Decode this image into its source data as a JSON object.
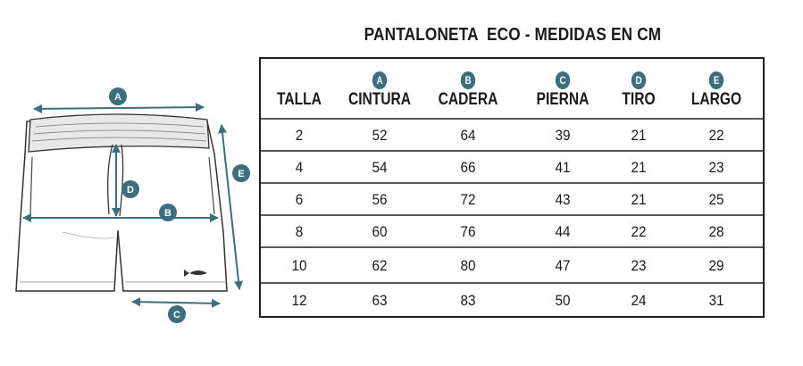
{
  "title": "PANTALONETA  ECO - MEDIDAS EN CM",
  "columns": [
    {
      "badge": "",
      "label": "TALLA"
    },
    {
      "badge": "A",
      "label": "CINTURA"
    },
    {
      "badge": "B",
      "label": "CADERA"
    },
    {
      "badge": "C",
      "label": "PIERNA"
    },
    {
      "badge": "D",
      "label": "TIRO"
    },
    {
      "badge": "E",
      "label": "LARGO"
    }
  ],
  "rows": [
    [
      "2",
      "52",
      "64",
      "39",
      "21",
      "22"
    ],
    [
      "4",
      "54",
      "66",
      "41",
      "21",
      "23"
    ],
    [
      "6",
      "56",
      "72",
      "43",
      "21",
      "25"
    ],
    [
      "8",
      "60",
      "76",
      "44",
      "22",
      "28"
    ],
    [
      "10",
      "62",
      "80",
      "47",
      "23",
      "29"
    ],
    [
      "12",
      "63",
      "83",
      "50",
      "24",
      "31"
    ]
  ],
  "diagram_labels": {
    "a": "A",
    "b": "B",
    "c": "C",
    "d": "D",
    "e": "E"
  },
  "colors": {
    "accent": "#3c6e7f",
    "border": "#1f1f1f"
  }
}
